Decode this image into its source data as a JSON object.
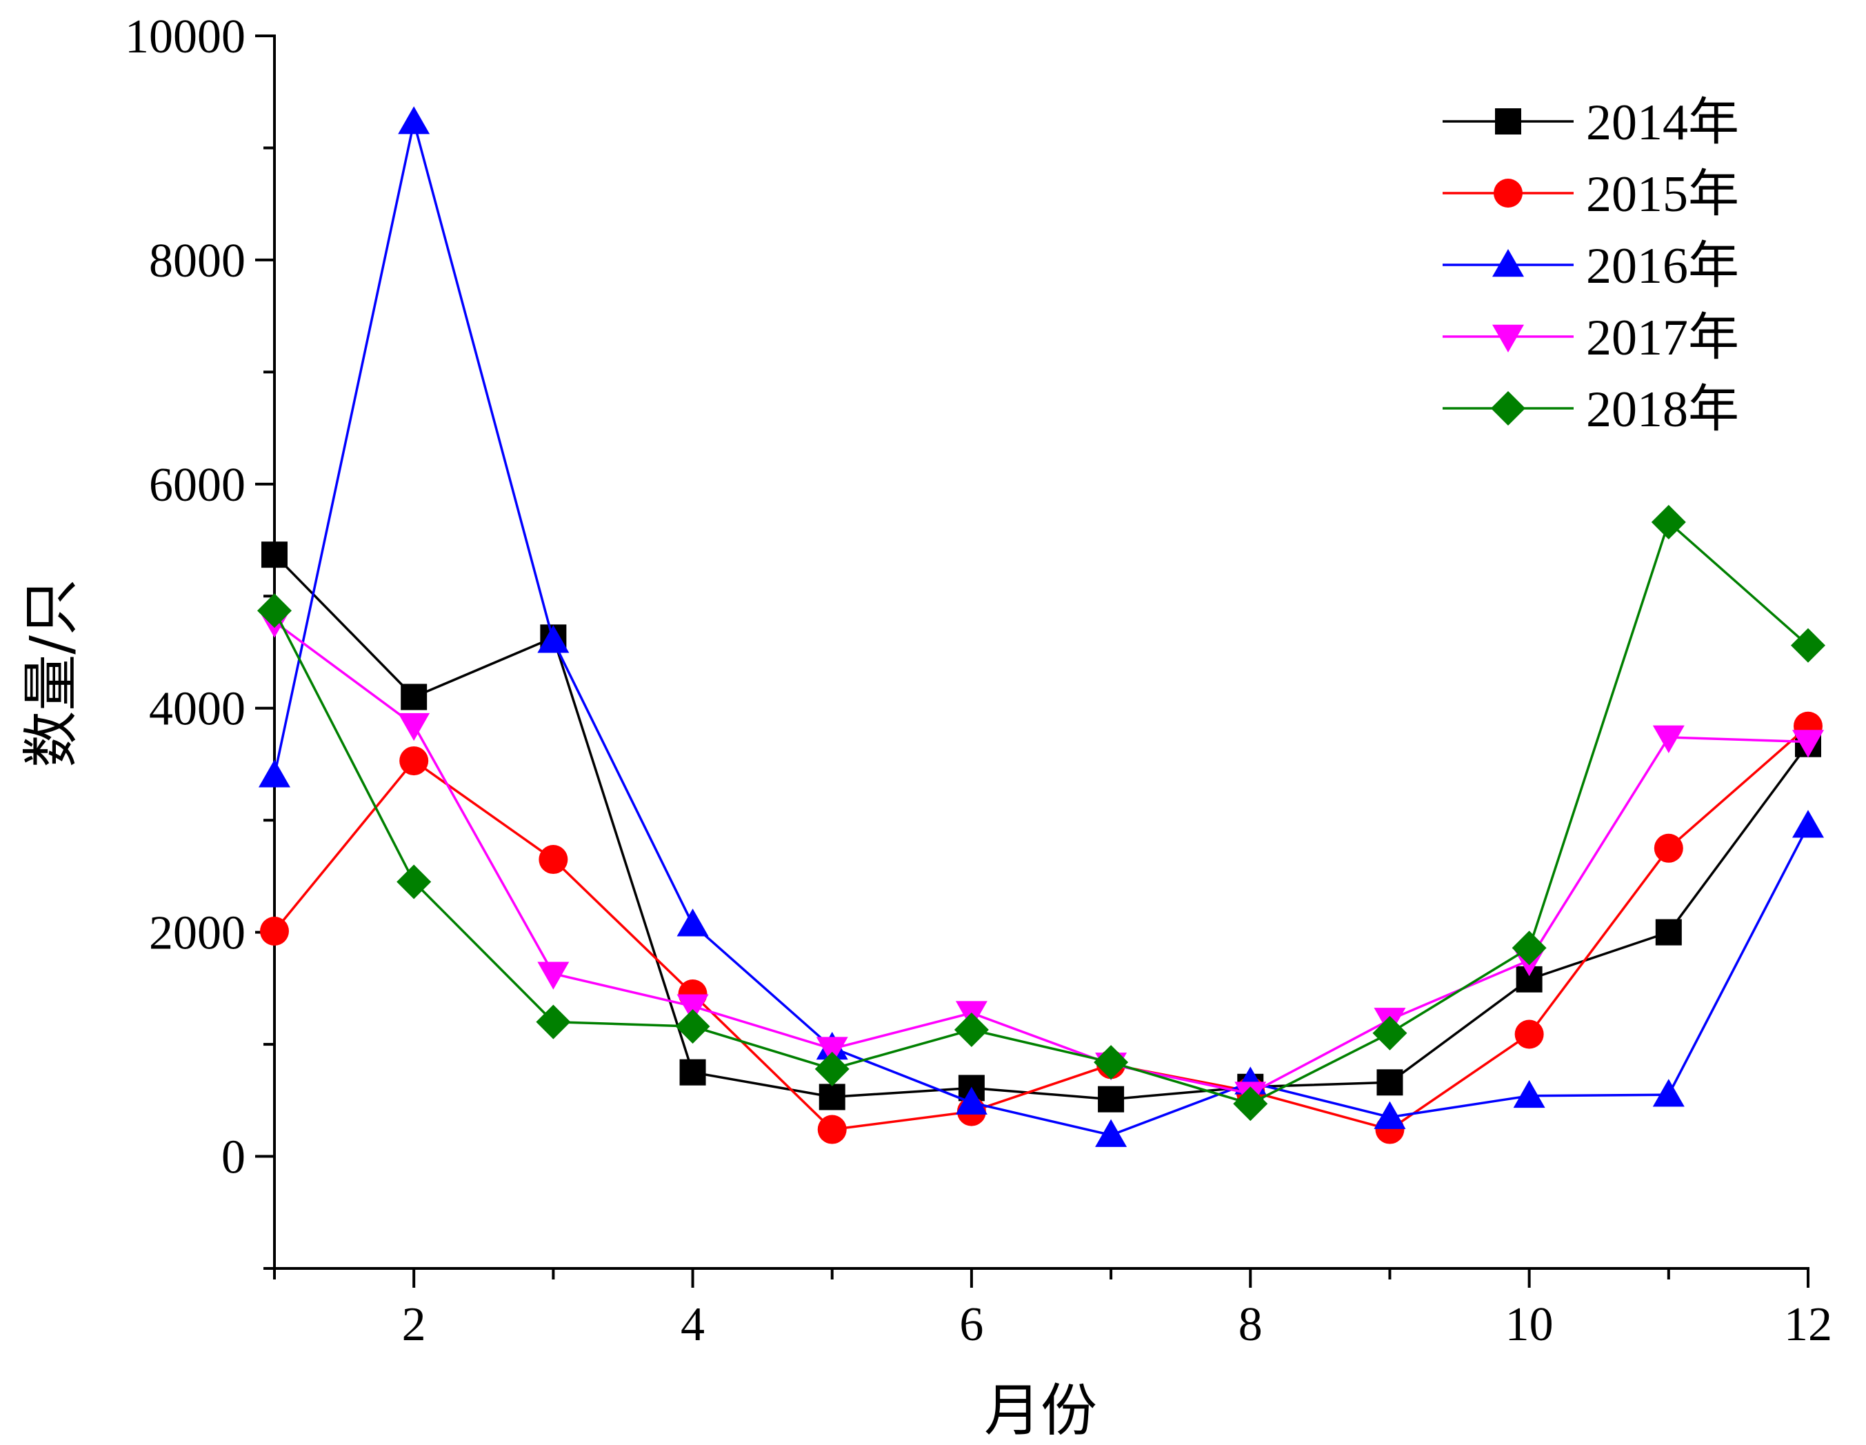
{
  "chart_data": {
    "type": "line",
    "xlabel": "月份",
    "ylabel": "数量/只",
    "xlim": [
      1,
      12
    ],
    "ylim": [
      -1000,
      10000
    ],
    "xticks": [
      2,
      4,
      6,
      8,
      10,
      12
    ],
    "yticks": [
      0,
      2000,
      4000,
      6000,
      8000,
      10000
    ],
    "grid": false,
    "legend_position": "top-right",
    "x": [
      1,
      2,
      3,
      4,
      5,
      6,
      7,
      8,
      9,
      10,
      11,
      12
    ],
    "series": [
      {
        "name": "2014年",
        "color": "#000000",
        "marker": "square",
        "values": [
          5370,
          4100,
          4630,
          750,
          530,
          610,
          510,
          620,
          660,
          1580,
          2000,
          3680
        ]
      },
      {
        "name": "2015年",
        "color": "#ff0000",
        "marker": "circle",
        "values": [
          2010,
          3530,
          2650,
          1450,
          240,
          400,
          820,
          580,
          240,
          1090,
          2750,
          3840
        ]
      },
      {
        "name": "2016年",
        "color": "#0000ff",
        "marker": "triangle-up",
        "values": [
          3400,
          9230,
          4600,
          2070,
          970,
          480,
          190,
          660,
          350,
          540,
          550,
          2950
        ]
      },
      {
        "name": "2017年",
        "color": "#ff00ff",
        "marker": "triangle-down",
        "values": [
          4770,
          3850,
          1630,
          1340,
          960,
          1280,
          820,
          560,
          1220,
          1750,
          3740,
          3700
        ]
      },
      {
        "name": "2018年",
        "color": "#008000",
        "marker": "diamond",
        "values": [
          4870,
          2450,
          1200,
          1160,
          780,
          1130,
          840,
          470,
          1100,
          1860,
          5660,
          4560
        ]
      }
    ]
  }
}
